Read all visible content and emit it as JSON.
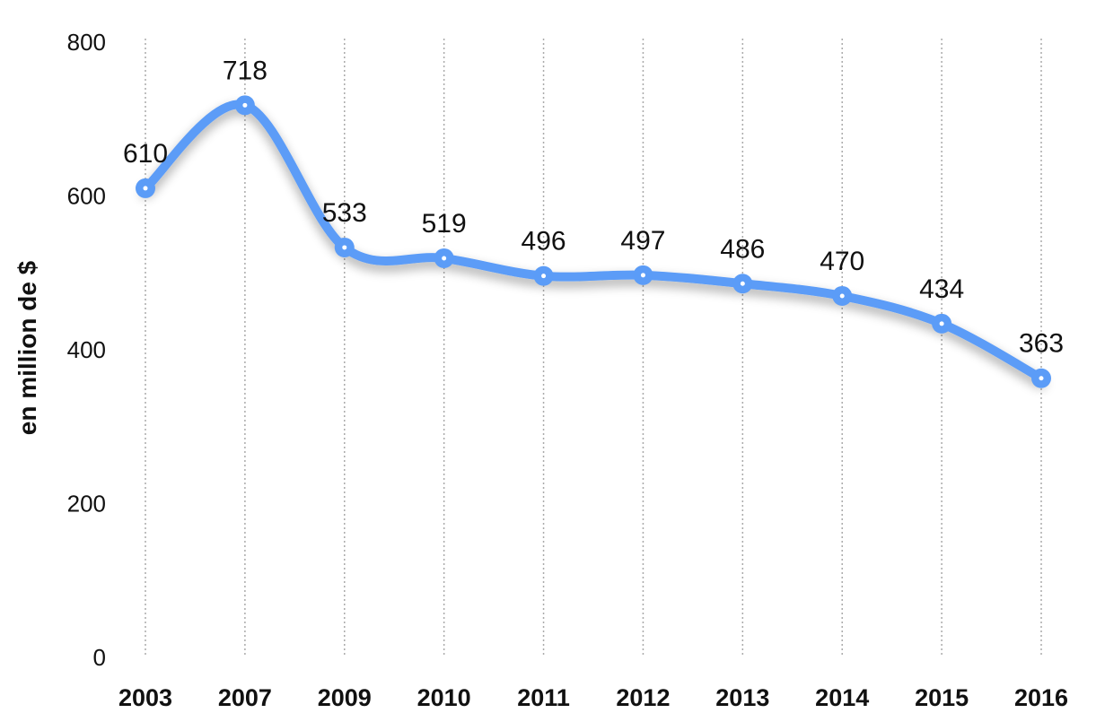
{
  "chart_data": {
    "type": "line",
    "title": "",
    "xlabel": "",
    "ylabel": "en million de $",
    "categories": [
      "2003",
      "2007",
      "2009",
      "2010",
      "2011",
      "2012",
      "2013",
      "2014",
      "2015",
      "2016"
    ],
    "series": [
      {
        "values": [
          610,
          718,
          533,
          519,
          496,
          497,
          486,
          470,
          434,
          363
        ]
      }
    ],
    "data_labels": [
      "610",
      "718",
      "533",
      "519",
      "496",
      "497",
      "486",
      "470",
      "434",
      "363"
    ],
    "ylim": [
      0,
      800
    ],
    "yticks": [
      "0",
      "200",
      "400",
      "600",
      "800"
    ],
    "grid": "vertical-dotted",
    "line_color": "#5b9cf7",
    "smooth": true
  }
}
